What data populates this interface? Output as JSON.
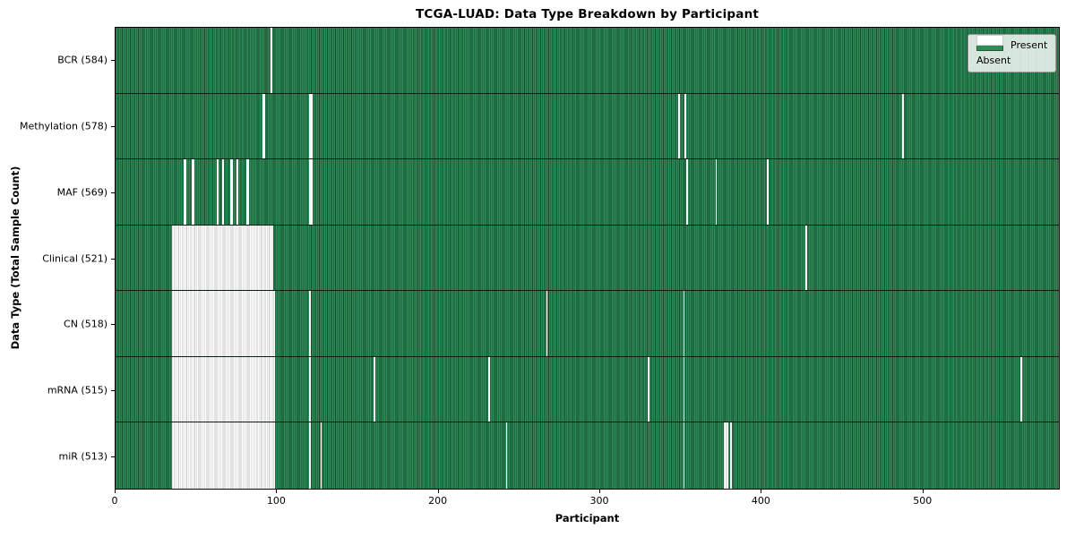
{
  "title": "TCGA-LUAD: Data Type Breakdown by Participant",
  "chart_data": {
    "type": "heatmap",
    "title": "TCGA-LUAD: Data Type Breakdown by Participant",
    "xlabel": "Participant",
    "ylabel": "Data Type (Total Sample Count)",
    "x_ticks": [
      0,
      100,
      200,
      300,
      400,
      500
    ],
    "xlim": [
      0,
      585
    ],
    "total_participants": 585,
    "grid": false,
    "legend_position": "upper right",
    "legend": [
      {
        "label": "Present",
        "color": "#2e8b57"
      },
      {
        "label": "Absent",
        "color": "#ffffff"
      }
    ],
    "colors": {
      "present": "#2e8b57",
      "present_edge": "#1d5c39",
      "absent": "#ffffff",
      "absent_edge": "#c6c6c6"
    },
    "rows": [
      {
        "label": "BCR (584)",
        "name": "bcr",
        "present_count": 584,
        "absent_ranges": [
          [
            96,
            97
          ]
        ]
      },
      {
        "label": "Methylation (578)",
        "name": "methylation",
        "present_count": 578,
        "absent_ranges": [
          [
            91,
            93
          ],
          [
            120,
            122
          ],
          [
            349,
            350
          ],
          [
            353,
            354
          ],
          [
            488,
            489
          ]
        ]
      },
      {
        "label": "MAF (569)",
        "name": "maf",
        "present_count": 569,
        "absent_ranges": [
          [
            42,
            44
          ],
          [
            47,
            49
          ],
          [
            63,
            64
          ],
          [
            66,
            67
          ],
          [
            71,
            73
          ],
          [
            75,
            76
          ],
          [
            81,
            83
          ],
          [
            120,
            122
          ],
          [
            354,
            355
          ],
          [
            372,
            373
          ],
          [
            404,
            405
          ]
        ]
      },
      {
        "label": "Clinical (521)",
        "name": "clinical",
        "present_count": 521,
        "absent_ranges": [
          [
            35,
            98
          ],
          [
            428,
            429
          ]
        ]
      },
      {
        "label": "CN (518)",
        "name": "cn",
        "present_count": 518,
        "absent_ranges": [
          [
            35,
            99
          ],
          [
            120,
            121
          ],
          [
            267,
            268
          ],
          [
            352,
            353
          ]
        ]
      },
      {
        "label": "mRNA (515)",
        "name": "mrna",
        "present_count": 515,
        "absent_ranges": [
          [
            35,
            99
          ],
          [
            120,
            121
          ],
          [
            160,
            161
          ],
          [
            231,
            232
          ],
          [
            330,
            331
          ],
          [
            352,
            353
          ],
          [
            561,
            562
          ]
        ]
      },
      {
        "label": "miR (513)",
        "name": "mir",
        "present_count": 513,
        "absent_ranges": [
          [
            35,
            99
          ],
          [
            120,
            121
          ],
          [
            127,
            128
          ],
          [
            242,
            243
          ],
          [
            352,
            353
          ],
          [
            377,
            380
          ],
          [
            381,
            382
          ]
        ]
      }
    ]
  }
}
